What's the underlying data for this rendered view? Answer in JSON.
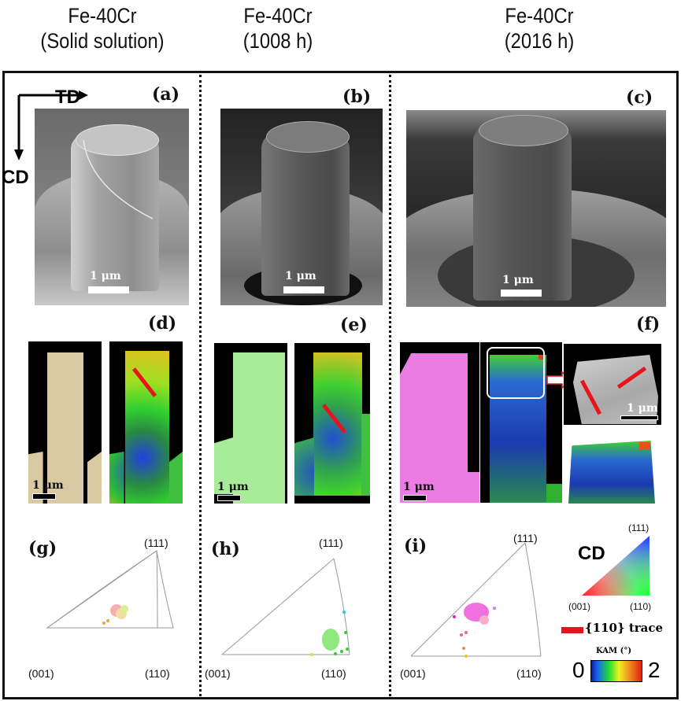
{
  "columns": [
    {
      "title": "Fe-40Cr",
      "subtitle": "(Solid solution)"
    },
    {
      "title": "Fe-40Cr",
      "subtitle": "(1008 h)"
    },
    {
      "title": "Fe-40Cr",
      "subtitle": "(2016 h)"
    }
  ],
  "axes": {
    "td": "TD",
    "cd": "CD"
  },
  "panels": {
    "a": "(a)",
    "b": "(b)",
    "c": "(c)",
    "d": "(d)",
    "e": "(e)",
    "f": "(f)",
    "g": "(g)",
    "h": "(h)",
    "i": "(i)"
  },
  "scale_bar": "1 μm",
  "ipf_poles": {
    "p111": "(111)",
    "p001": "(001)",
    "p110": "(110)"
  },
  "legend": {
    "cd": "CD",
    "trace": "{110} trace",
    "trace_color": "#e8141b",
    "kam_title": "KAM (°)",
    "kam_min": "0",
    "kam_max": "2"
  }
}
